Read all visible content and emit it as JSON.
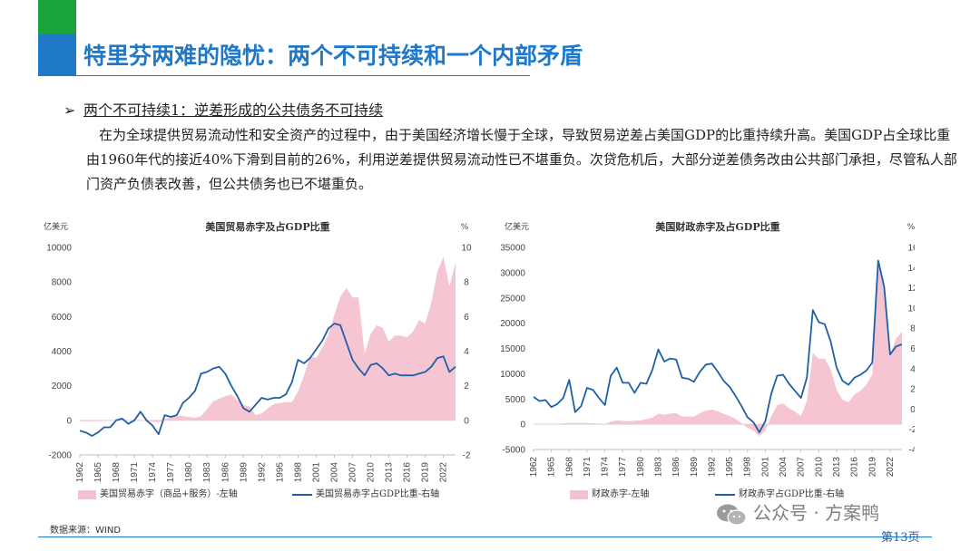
{
  "header": {
    "title": "特里芬两难的隐忧：两个不可持续和一个内部矛盾",
    "accent_green": "#19a33a",
    "accent_blue": "#1f78c8"
  },
  "section": {
    "bullet": "➢",
    "heading": "两个不可持续1：逆差形成的公共债务不可持续",
    "paragraph": "在为全球提供贸易流动性和安全资产的过程中，由于美国经济增长慢于全球，导致贸易逆差占美国GDP的比重持续升高。美国GDP占全球比重由1960年代的接近40%下滑到目前的26%，利用逆差提供贸易流动性已不堪重负。次贷危机后，大部分逆差债务改由公共部门承担，尽管私人部门资产负债表改善，但公共债务也已不堪重负。"
  },
  "chart_data": [
    {
      "type": "area+line",
      "title": "美国贸易赤字及占GDP比重",
      "ylabel_left": "亿美元",
      "ylabel_right": "%",
      "ylim_left": [
        -2000,
        10000
      ],
      "yticks_left": [
        -2000,
        0,
        2000,
        4000,
        6000,
        8000,
        10000
      ],
      "ylim_right": [
        -2,
        10
      ],
      "yticks_right": [
        -2,
        0,
        2,
        4,
        6,
        8,
        10
      ],
      "xlim": [
        1962,
        2024
      ],
      "xticks": [
        1962,
        1965,
        1968,
        1971,
        1974,
        1977,
        1980,
        1983,
        1986,
        1989,
        1992,
        1995,
        1998,
        2001,
        2004,
        2007,
        2010,
        2013,
        2016,
        2019,
        2022
      ],
      "grid": false,
      "legend_position": "bottom",
      "series": [
        {
          "name": "美国贸易赤字（商品+服务）-左轴",
          "axis": "left",
          "color": "#f4c2cf",
          "x": [
            1962,
            1965,
            1968,
            1971,
            1973,
            1975,
            1976,
            1977,
            1978,
            1979,
            1980,
            1981,
            1982,
            1983,
            1984,
            1985,
            1986,
            1987,
            1988,
            1989,
            1990,
            1991,
            1992,
            1993,
            1994,
            1995,
            1996,
            1997,
            1998,
            1999,
            2000,
            2001,
            2002,
            2003,
            2004,
            2005,
            2006,
            2007,
            2008,
            2009,
            2010,
            2011,
            2012,
            2013,
            2014,
            2015,
            2016,
            2017,
            2018,
            2019,
            2020,
            2021,
            2022,
            2023,
            2024
          ],
          "values": [
            -50,
            -50,
            0,
            0,
            -50,
            -120,
            50,
            200,
            250,
            250,
            200,
            150,
            250,
            650,
            1100,
            1250,
            1400,
            1500,
            1150,
            900,
            800,
            300,
            400,
            700,
            950,
            1000,
            1050,
            1050,
            1650,
            2600,
            3700,
            3600,
            4200,
            4950,
            6100,
            7150,
            7650,
            7100,
            7100,
            3850,
            5000,
            5500,
            5350,
            4550,
            4900,
            4900,
            4800,
            5150,
            5800,
            5600,
            6800,
            8600,
            9450,
            7750,
            9100
          ]
        },
        {
          "name": "美国贸易赤字占GDP比重-右轴",
          "axis": "right",
          "color": "#1f5fa8",
          "x": [
            1962,
            1963,
            1964,
            1965,
            1966,
            1967,
            1968,
            1969,
            1970,
            1971,
            1972,
            1973,
            1974,
            1975,
            1976,
            1977,
            1978,
            1979,
            1980,
            1981,
            1982,
            1983,
            1984,
            1985,
            1986,
            1987,
            1988,
            1989,
            1990,
            1991,
            1992,
            1993,
            1994,
            1995,
            1996,
            1997,
            1998,
            1999,
            2000,
            2001,
            2002,
            2003,
            2004,
            2005,
            2006,
            2007,
            2008,
            2009,
            2010,
            2011,
            2012,
            2013,
            2014,
            2015,
            2016,
            2017,
            2018,
            2019,
            2020,
            2021,
            2022,
            2023,
            2024
          ],
          "values": [
            -0.6,
            -0.7,
            -0.9,
            -0.7,
            -0.4,
            -0.4,
            0.0,
            0.1,
            -0.2,
            0.0,
            0.5,
            0.0,
            -0.3,
            -0.8,
            0.3,
            0.2,
            0.3,
            1.0,
            1.3,
            1.7,
            2.7,
            2.8,
            3.0,
            3.1,
            2.7,
            2.0,
            1.4,
            0.7,
            0.5,
            0.9,
            1.3,
            1.2,
            1.3,
            1.3,
            1.5,
            2.2,
            3.5,
            3.3,
            3.6,
            4.1,
            4.6,
            5.3,
            5.6,
            5.5,
            4.5,
            3.5,
            3.0,
            2.6,
            3.2,
            3.3,
            3.0,
            2.6,
            2.7,
            2.6,
            2.6,
            2.6,
            2.7,
            2.8,
            3.1,
            3.6,
            3.7,
            2.8,
            3.1
          ]
        }
      ]
    },
    {
      "type": "area+line",
      "title": "美国财政赤字及占GDP比重",
      "ylabel_left": "亿美元",
      "ylabel_right": "%",
      "ylim_left": [
        -5000,
        35000
      ],
      "yticks_left": [
        -5000,
        0,
        5000,
        10000,
        15000,
        20000,
        25000,
        30000,
        35000
      ],
      "ylim_right": [
        -4,
        16
      ],
      "yticks_right": [
        -4,
        -2,
        0,
        2,
        4,
        6,
        8,
        10,
        12,
        14,
        16
      ],
      "xlim": [
        1962,
        2024
      ],
      "xticks": [
        1962,
        1965,
        1968,
        1971,
        1974,
        1977,
        1980,
        1983,
        1986,
        1989,
        1992,
        1995,
        1998,
        2001,
        2004,
        2007,
        2010,
        2013,
        2016,
        2019,
        2022
      ],
      "grid": false,
      "legend_position": "bottom",
      "series": [
        {
          "name": "财政赤字-左轴",
          "axis": "left",
          "color": "#f4c2cf",
          "x": [
            1962,
            1965,
            1968,
            1971,
            1974,
            1975,
            1976,
            1978,
            1980,
            1982,
            1983,
            1984,
            1985,
            1986,
            1987,
            1988,
            1989,
            1990,
            1991,
            1992,
            1993,
            1994,
            1995,
            1996,
            1997,
            1998,
            1999,
            2000,
            2001,
            2002,
            2003,
            2004,
            2005,
            2006,
            2007,
            2008,
            2009,
            2010,
            2011,
            2012,
            2013,
            2014,
            2015,
            2016,
            2017,
            2018,
            2019,
            2020,
            2021,
            2022,
            2023,
            2024
          ],
          "values": [
            70,
            20,
            250,
            230,
            60,
            500,
            740,
            600,
            740,
            1280,
            2080,
            1850,
            2120,
            2210,
            1500,
            1550,
            1530,
            2210,
            2690,
            2900,
            2550,
            2030,
            1640,
            1070,
            220,
            -690,
            -1260,
            -2360,
            -1280,
            1580,
            3780,
            4130,
            3180,
            2480,
            1610,
            4590,
            14130,
            12940,
            13000,
            10870,
            6800,
            4850,
            4380,
            5850,
            6650,
            7790,
            9840,
            31320,
            27720,
            13750,
            16950,
            18330
          ]
        },
        {
          "name": "财政赤字占GDP比重-右轴",
          "axis": "right",
          "color": "#1f5fa8",
          "x": [
            1962,
            1963,
            1964,
            1965,
            1966,
            1967,
            1968,
            1969,
            1970,
            1971,
            1972,
            1973,
            1974,
            1975,
            1976,
            1977,
            1978,
            1979,
            1980,
            1981,
            1982,
            1983,
            1984,
            1985,
            1986,
            1987,
            1988,
            1989,
            1990,
            1991,
            1992,
            1993,
            1994,
            1995,
            1996,
            1997,
            1998,
            1999,
            2000,
            2001,
            2002,
            2003,
            2004,
            2005,
            2006,
            2007,
            2008,
            2009,
            2010,
            2011,
            2012,
            2013,
            2014,
            2015,
            2016,
            2017,
            2018,
            2019,
            2020,
            2021,
            2022,
            2023,
            2024
          ],
          "values": [
            1.2,
            0.8,
            0.9,
            0.2,
            0.5,
            1.1,
            2.9,
            -0.3,
            0.3,
            2.1,
            1.9,
            1.1,
            0.4,
            3.3,
            4.1,
            2.6,
            2.6,
            1.6,
            2.6,
            2.5,
            3.9,
            5.9,
            4.7,
            5.0,
            4.9,
            3.1,
            3.0,
            2.7,
            3.7,
            4.4,
            4.5,
            3.7,
            2.8,
            2.2,
            1.3,
            0.3,
            -0.8,
            -1.3,
            -2.3,
            -1.2,
            1.5,
            3.3,
            3.4,
            2.5,
            1.8,
            1.1,
            3.1,
            9.8,
            8.6,
            8.4,
            6.7,
            4.1,
            2.8,
            2.4,
            3.1,
            3.4,
            3.8,
            4.6,
            14.7,
            12.1,
            5.4,
            6.2,
            6.4
          ]
        }
      ]
    }
  ],
  "footer": {
    "source": "数据来源：WIND",
    "page": "第13页",
    "watermark": "公众号 · 方案鸭"
  }
}
